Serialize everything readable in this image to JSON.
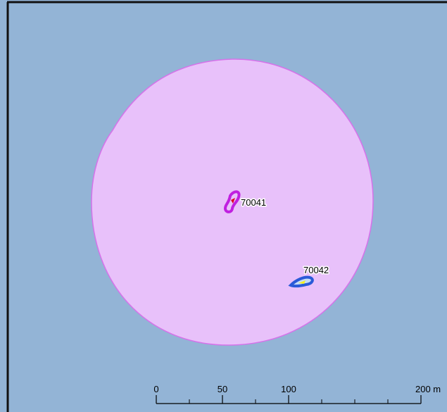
{
  "features": [
    {
      "label": "70041"
    },
    {
      "label": "70042"
    }
  ],
  "scale_bar": {
    "unit_length_m": 200,
    "ticks": [
      0,
      50,
      100,
      {
        "value": 200,
        "label": "200 m"
      }
    ],
    "minor_ticks": [
      25,
      75,
      125,
      150,
      175
    ]
  }
}
